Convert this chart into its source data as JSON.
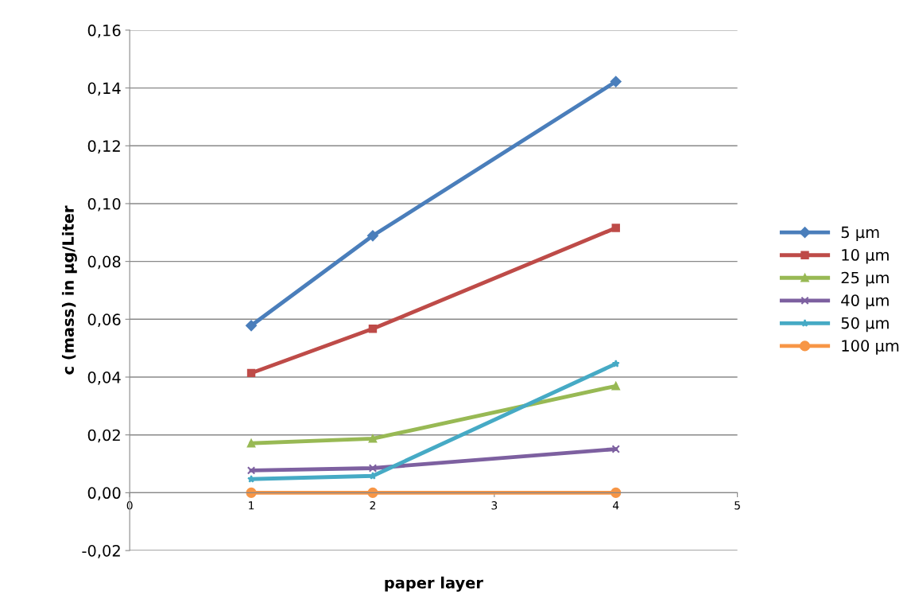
{
  "chart_data": {
    "type": "line",
    "xlabel": "paper layer",
    "ylabel": "c (mass) in µg/Liter",
    "xlim": [
      0,
      5
    ],
    "xticks": [
      0,
      1,
      2,
      3,
      4,
      5
    ],
    "ylim": [
      -0.02,
      0.16
    ],
    "yticks": [
      {
        "value": -0.02,
        "label": "-0,02"
      },
      {
        "value": 0,
        "label": "0,00"
      },
      {
        "value": 0.02,
        "label": "0,02"
      },
      {
        "value": 0.04,
        "label": "0,04"
      },
      {
        "value": 0.06,
        "label": "0,06"
      },
      {
        "value": 0.08,
        "label": "0,08"
      },
      {
        "value": 0.1,
        "label": "0,10"
      },
      {
        "value": 0.12,
        "label": "0,12"
      },
      {
        "value": 0.14,
        "label": "0,14"
      },
      {
        "value": 0.16,
        "label": "0,16"
      }
    ],
    "x": [
      1,
      2,
      4
    ],
    "grid": "y",
    "legend": "right",
    "line_style": "solid",
    "series": [
      {
        "name": "5 µm",
        "color": "#4a7ebb",
        "marker": "diamond",
        "values": [
          0.0578,
          0.0889,
          0.1422
        ]
      },
      {
        "name": "10 µm",
        "color": "#be4b48",
        "marker": "square",
        "values": [
          0.0414,
          0.0567,
          0.0916
        ]
      },
      {
        "name": "25 µm",
        "color": "#98b954",
        "marker": "triangle",
        "values": [
          0.0171,
          0.0187,
          0.0369
        ]
      },
      {
        "name": "40 µm",
        "color": "#7d60a0",
        "marker": "cross",
        "values": [
          0.0077,
          0.0085,
          0.0151
        ]
      },
      {
        "name": "50 µm",
        "color": "#46aac5",
        "marker": "star",
        "values": [
          0.0047,
          0.0058,
          0.0446
        ]
      },
      {
        "name": "100 µm",
        "color": "#f79646",
        "marker": "circle",
        "values": [
          0,
          0,
          0
        ]
      }
    ]
  }
}
